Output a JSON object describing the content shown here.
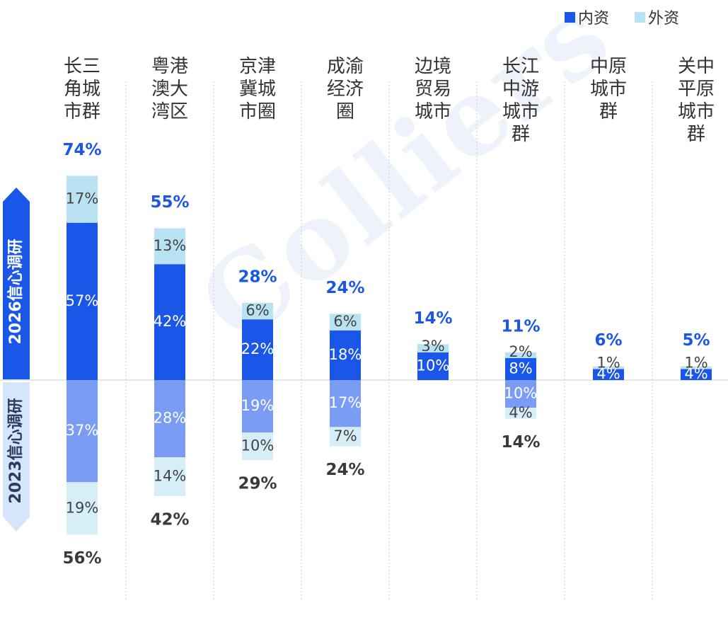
{
  "legend": {
    "domestic_label": "内资",
    "foreign_label": "外资"
  },
  "periods": {
    "upper": "2026信心调研",
    "lower": "2023信心调研"
  },
  "watermark": "Colliers",
  "colors": {
    "domestic_2026": "#1a56e8",
    "foreign_2026": "#b9e3f3",
    "domestic_2023": "#7b9cf4",
    "foreign_2023": "#d6eef8",
    "total_2026_text": "#1a56e8",
    "total_2023_text": "#3a3a3a",
    "arrow_upper": "#1a56e8",
    "arrow_lower": "#d5e5fb"
  },
  "chart_data": {
    "type": "bar",
    "categories": [
      "长三\n角城\n市群",
      "粤港\n澳大\n湾区",
      "京津\n冀城\n市圈",
      "成渝\n经济\n圈",
      "边境\n贸易\n城市",
      "长江\n中游\n城市\n群",
      "中原\n城市\n群",
      "关中\n平原\n城市\n群"
    ],
    "series": [
      {
        "name": "内资",
        "period": "2026信心调研",
        "values": [
          57,
          42,
          22,
          18,
          10,
          8,
          4,
          4
        ]
      },
      {
        "name": "外资",
        "period": "2026信心调研",
        "values": [
          17,
          13,
          6,
          6,
          3,
          2,
          1,
          1
        ]
      },
      {
        "name": "内资",
        "period": "2023信心调研",
        "values": [
          37,
          28,
          19,
          17,
          null,
          10,
          null,
          null
        ]
      },
      {
        "name": "外资",
        "period": "2023信心调研",
        "values": [
          19,
          14,
          10,
          7,
          null,
          4,
          null,
          null
        ]
      }
    ],
    "totals_2026": [
      "74%",
      "55%",
      "28%",
      "24%",
      "14%",
      "11%",
      "6%",
      "5%"
    ],
    "totals_2023": [
      "56%",
      "42%",
      "29%",
      "24%",
      "",
      "14%",
      "",
      ""
    ],
    "unit": "%",
    "legend_position": "top-right",
    "grid": false
  }
}
